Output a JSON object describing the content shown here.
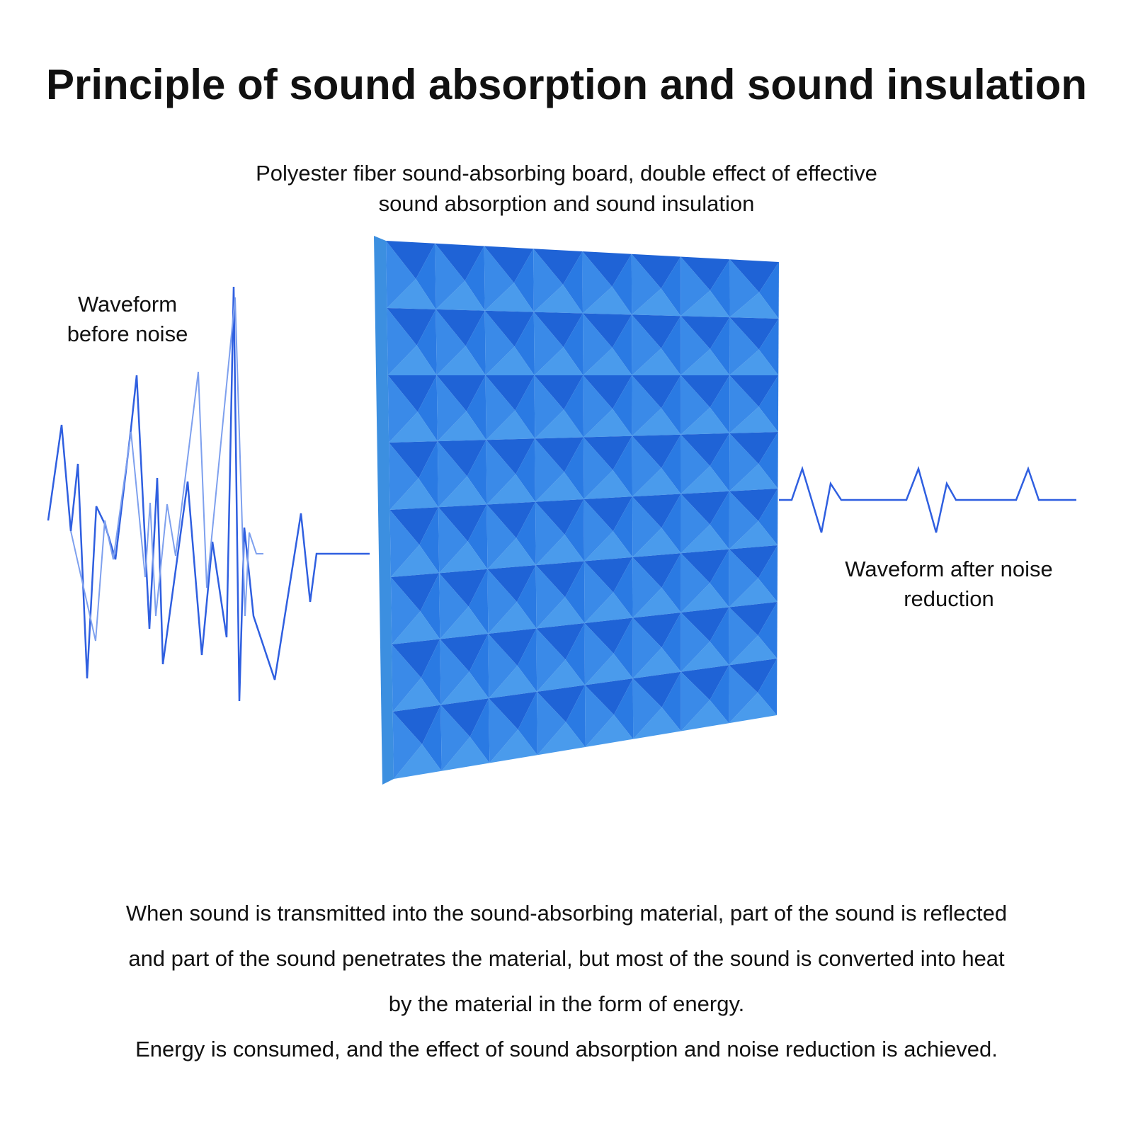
{
  "title": "Principle of sound absorption and sound insulation",
  "subtitle": [
    "Polyester fiber sound-absorbing board, double effect of effective",
    "sound absorption and sound insulation"
  ],
  "left_label": [
    "Waveform",
    "before noise"
  ],
  "right_label": [
    "Waveform after noise",
    "reduction"
  ],
  "description": [
    "When sound is transmitted into the sound-absorbing material, part of the sound is reflected",
    "and part of the sound penetrates the material, but most of the sound is converted into heat",
    "by the material in the form of energy.",
    "Energy is consumed, and the effect of sound absorption and noise reduction is achieved."
  ]
}
